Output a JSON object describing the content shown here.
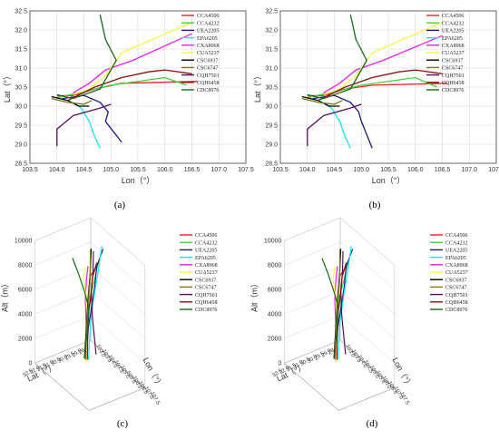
{
  "figure": {
    "panels_2d": [
      {
        "caption": "(a)",
        "xlabel": "Lon（°）",
        "ylabel": "Lat（°）"
      },
      {
        "caption": "(b)",
        "xlabel": "Lon（°）",
        "ylabel": "Lat（°）"
      }
    ],
    "panels_3d": [
      {
        "caption": "(c)",
        "xlabel": "Lon（°）",
        "ylabel": "Lat（°）",
        "zlabel": "Alt（m）"
      },
      {
        "caption": "(d)",
        "xlabel": "Lon（°）",
        "ylabel": "Lat（°）",
        "zlabel": "Alt（m）"
      }
    ]
  },
  "chart_data": [
    {
      "type": "line",
      "caption": "(a)",
      "xlabel": "Lon（°）",
      "ylabel": "Lat（°）",
      "xlim": [
        103.5,
        107.5
      ],
      "ylim": [
        28.5,
        32.5
      ],
      "xticks": [
        "103.5",
        "104.0",
        "104.5",
        "105.0",
        "105.5",
        "106.0",
        "106.5",
        "107.0",
        "107.5"
      ],
      "yticks": [
        "28.5",
        "29.0",
        "29.5",
        "30.0",
        "30.5",
        "31.0",
        "31.5",
        "32.0",
        "32.5"
      ],
      "grid": true,
      "legend": "top-right",
      "series": [
        {
          "name": "CCA4506",
          "color": "#e8202a",
          "x": [
            104.0,
            104.3,
            104.7,
            105.2,
            106.6
          ],
          "y": [
            30.27,
            30.28,
            30.45,
            30.6,
            30.65
          ]
        },
        {
          "name": "CCA4232",
          "color": "#3bd43b",
          "x": [
            104.0,
            104.4,
            105.0,
            106.0,
            106.4
          ],
          "y": [
            30.22,
            30.35,
            30.55,
            30.75,
            30.55
          ]
        },
        {
          "name": "UEA2205",
          "color": "#1a1a8c",
          "x": [
            104.1,
            104.5,
            104.8,
            104.95,
            104.9,
            105.2
          ],
          "y": [
            30.2,
            30.28,
            30.1,
            29.85,
            29.6,
            29.05
          ]
        },
        {
          "name": "EPA6205",
          "color": "#19e5f0",
          "x": [
            104.3,
            104.45,
            104.6,
            104.7,
            104.8
          ],
          "y": [
            30.1,
            29.95,
            29.6,
            29.2,
            28.9
          ]
        },
        {
          "name": "CXA8968",
          "color": "#ef1fef",
          "x": [
            104.3,
            104.6,
            104.9,
            105.4,
            106.5
          ],
          "y": [
            30.35,
            30.6,
            30.95,
            31.2,
            31.9
          ]
        },
        {
          "name": "CUA5237",
          "color": "#f7f74a",
          "x": [
            104.3,
            104.6,
            104.9,
            105.2,
            106.5
          ],
          "y": [
            30.3,
            30.45,
            30.8,
            31.4,
            32.2
          ]
        },
        {
          "name": "CSC6937",
          "color": "#000000",
          "x": [
            103.9,
            104.2,
            104.4,
            104.6
          ],
          "y": [
            30.25,
            30.15,
            30.0,
            30.0
          ]
        },
        {
          "name": "CSC6747",
          "color": "#7a7a1e",
          "x": [
            103.9,
            104.2,
            104.5,
            104.65
          ],
          "y": [
            30.2,
            30.1,
            30.05,
            30.15
          ]
        },
        {
          "name": "CQH7501",
          "color": "#5a0f5a",
          "x": [
            104.0,
            104.0,
            104.3,
            104.8,
            105.0
          ],
          "y": [
            28.95,
            29.4,
            29.75,
            29.95,
            30.05
          ]
        },
        {
          "name": "CQH6458",
          "color": "#8b0f0f",
          "x": [
            104.2,
            104.7,
            105.2,
            105.7,
            106.0,
            106.5
          ],
          "y": [
            30.15,
            30.5,
            30.75,
            30.9,
            30.95,
            30.85
          ]
        },
        {
          "name": "CDC8976",
          "color": "#1a6b1a",
          "x": [
            104.0,
            104.3,
            104.8,
            105.1,
            104.9,
            104.8
          ],
          "y": [
            30.3,
            30.2,
            30.45,
            31.2,
            31.75,
            32.4
          ]
        }
      ]
    },
    {
      "type": "line",
      "caption": "(b)",
      "xlabel": "Lon（°）",
      "ylabel": "Lat（°）",
      "xlim": [
        103.5,
        107.5
      ],
      "ylim": [
        28.5,
        32.5
      ],
      "xticks": [
        "103.5",
        "104.0",
        "104.5",
        "105.0",
        "105.5",
        "106.0",
        "106.5",
        "107.0",
        "107.5"
      ],
      "yticks": [
        "28.5",
        "29.0",
        "29.5",
        "30.0",
        "30.5",
        "31.0",
        "31.5",
        "32.0",
        "32.5"
      ],
      "grid": true,
      "legend": "top-right",
      "series": [
        {
          "name": "CCA4506",
          "color": "#e8202a",
          "x": [
            104.0,
            104.3,
            104.7,
            105.2,
            106.6
          ],
          "y": [
            30.27,
            30.28,
            30.45,
            30.55,
            30.6
          ]
        },
        {
          "name": "CCA4232",
          "color": "#3bd43b",
          "x": [
            104.0,
            104.4,
            105.0,
            106.0,
            106.4
          ],
          "y": [
            30.22,
            30.35,
            30.55,
            30.75,
            30.5
          ]
        },
        {
          "name": "UEA2205",
          "color": "#1a1a8c",
          "x": [
            104.1,
            104.5,
            104.8,
            104.95,
            105.0,
            105.2
          ],
          "y": [
            30.2,
            30.28,
            30.1,
            29.85,
            29.6,
            28.9
          ]
        },
        {
          "name": "EPA6205",
          "color": "#19e5f0",
          "x": [
            104.3,
            104.45,
            104.6,
            104.7,
            104.8
          ],
          "y": [
            30.1,
            29.95,
            29.6,
            29.2,
            28.9
          ]
        },
        {
          "name": "CXA8968",
          "color": "#ef1fef",
          "x": [
            104.3,
            104.6,
            104.9,
            105.4,
            106.5
          ],
          "y": [
            30.35,
            30.6,
            30.95,
            31.2,
            31.85
          ]
        },
        {
          "name": "CUA5237",
          "color": "#f7f74a",
          "x": [
            104.3,
            104.6,
            104.9,
            105.2,
            106.5
          ],
          "y": [
            30.3,
            30.45,
            30.8,
            31.4,
            32.2
          ]
        },
        {
          "name": "CSC6937",
          "color": "#000000",
          "x": [
            103.9,
            104.2,
            104.4,
            104.6
          ],
          "y": [
            30.25,
            30.15,
            30.0,
            30.0
          ]
        },
        {
          "name": "CSC6747",
          "color": "#7a7a1e",
          "x": [
            103.9,
            104.2,
            104.5,
            104.65
          ],
          "y": [
            30.2,
            30.1,
            30.05,
            30.15
          ]
        },
        {
          "name": "CQH7501",
          "color": "#5a0f5a",
          "x": [
            104.0,
            104.0,
            104.3,
            104.8,
            105.0
          ],
          "y": [
            28.95,
            29.4,
            29.75,
            29.95,
            30.05
          ]
        },
        {
          "name": "CQH6458",
          "color": "#8b0f0f",
          "x": [
            104.2,
            104.7,
            105.2,
            105.7,
            106.0,
            106.5
          ],
          "y": [
            30.15,
            30.5,
            30.75,
            30.9,
            30.95,
            30.85
          ]
        },
        {
          "name": "CDC8976",
          "color": "#1a6b1a",
          "x": [
            104.0,
            104.3,
            104.8,
            105.1,
            104.9,
            104.8
          ],
          "y": [
            30.3,
            30.2,
            30.45,
            31.2,
            31.75,
            32.4
          ]
        }
      ]
    },
    {
      "type": "line",
      "caption": "(c)",
      "xlabel": "Lon（°）",
      "ylabel": "Lat（°）",
      "zlabel": "Alt（m）",
      "zlim": [
        0,
        10000
      ],
      "zticks": [
        "0",
        "2000",
        "4000",
        "6000",
        "8000",
        "10000"
      ],
      "lat_ticks": [
        "28.5",
        "29.0",
        "29.5",
        "30.0",
        "30.5",
        "31.0",
        "31.5",
        "32.0",
        "32.5"
      ],
      "lon_ticks": [
        "103.0",
        "103.5",
        "104.0",
        "104.5",
        "105.0",
        "105.5",
        "106.0",
        "106.5",
        "107.0",
        "107.5"
      ],
      "legend": "top-right",
      "series": [
        "CCA4506",
        "CCA4232",
        "UEA2205",
        "EPA6205",
        "CXA8968",
        "CUA5237",
        "CSC6937",
        "CSC6747",
        "CQH7501",
        "CQH6458",
        "CDC8976"
      ]
    },
    {
      "type": "line",
      "caption": "(d)",
      "xlabel": "Lon（°）",
      "ylabel": "Lat（°）",
      "zlabel": "Alt（m）",
      "zlim": [
        0,
        10000
      ],
      "zticks": [
        "0",
        "2000",
        "4000",
        "6000",
        "8000",
        "10000"
      ],
      "lat_ticks": [
        "28.5",
        "29.0",
        "29.5",
        "30.0",
        "30.5",
        "31.0",
        "31.5",
        "32.0",
        "32.5"
      ],
      "lon_ticks": [
        "103.0",
        "103.5",
        "104.0",
        "104.5",
        "105.0",
        "105.5",
        "106.0",
        "106.5",
        "107.0",
        "107.5"
      ],
      "legend": "top-right",
      "series": [
        "CCA4506",
        "CCA4232",
        "UEA2205",
        "EPA6205",
        "CXA8968",
        "CUA5237",
        "CSC6937",
        "CSC6747",
        "CQH7501",
        "CQH6458",
        "CDC8976"
      ]
    }
  ],
  "legend": {
    "names": [
      "CCA4506",
      "CCA4232",
      "UEA2205",
      "EPA6205",
      "CXA8968",
      "CUA5237",
      "CSC6937",
      "CSC6747",
      "CQH7501",
      "CQH6458",
      "CDC8976"
    ],
    "colors": [
      "#e8202a",
      "#3bd43b",
      "#1a1a8c",
      "#19e5f0",
      "#ef1fef",
      "#f7f74a",
      "#000000",
      "#7a7a1e",
      "#5a0f5a",
      "#8b0f0f",
      "#1a6b1a"
    ]
  }
}
